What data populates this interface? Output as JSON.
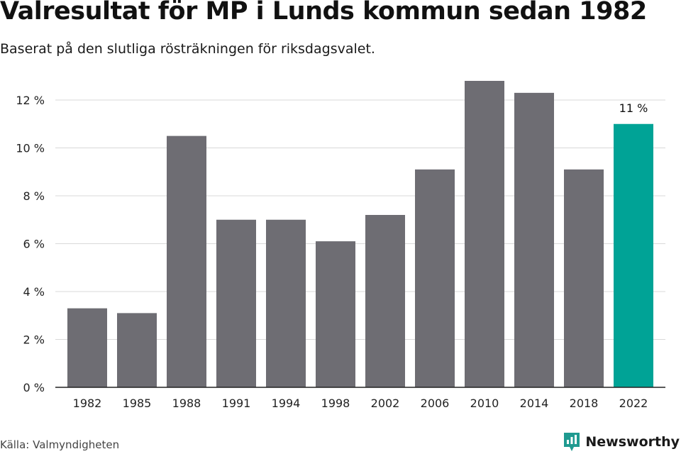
{
  "title": "Valresultat för MP i Lunds kommun sedan 1982",
  "subtitle": "Baserat på den slutliga rösträkningen för riksdagsvalet.",
  "source": "Källa: Valmyndigheten",
  "brand": {
    "name": "Newsworthy",
    "icon": "newsworthy-logo-icon"
  },
  "colors": {
    "bar": "#6e6d73",
    "highlight": "#00a396",
    "grid": "#d9d9d9",
    "axis": "#222222",
    "brand": "#1f9a90"
  },
  "chart_data": {
    "type": "bar",
    "categories": [
      "1982",
      "1985",
      "1988",
      "1991",
      "1994",
      "1998",
      "2002",
      "2006",
      "2010",
      "2014",
      "2018",
      "2022"
    ],
    "values": [
      3.3,
      3.1,
      10.5,
      7.0,
      7.0,
      6.1,
      7.2,
      9.1,
      12.8,
      12.3,
      9.1,
      11.0
    ],
    "highlight_index": 11,
    "yticks": [
      "0 %",
      "2 %",
      "4 %",
      "6 %",
      "8 %",
      "10 %",
      "12 %"
    ],
    "ylim": [
      0,
      12.8
    ],
    "ytick_step": 2,
    "grid": true,
    "annotation": "11 %"
  }
}
